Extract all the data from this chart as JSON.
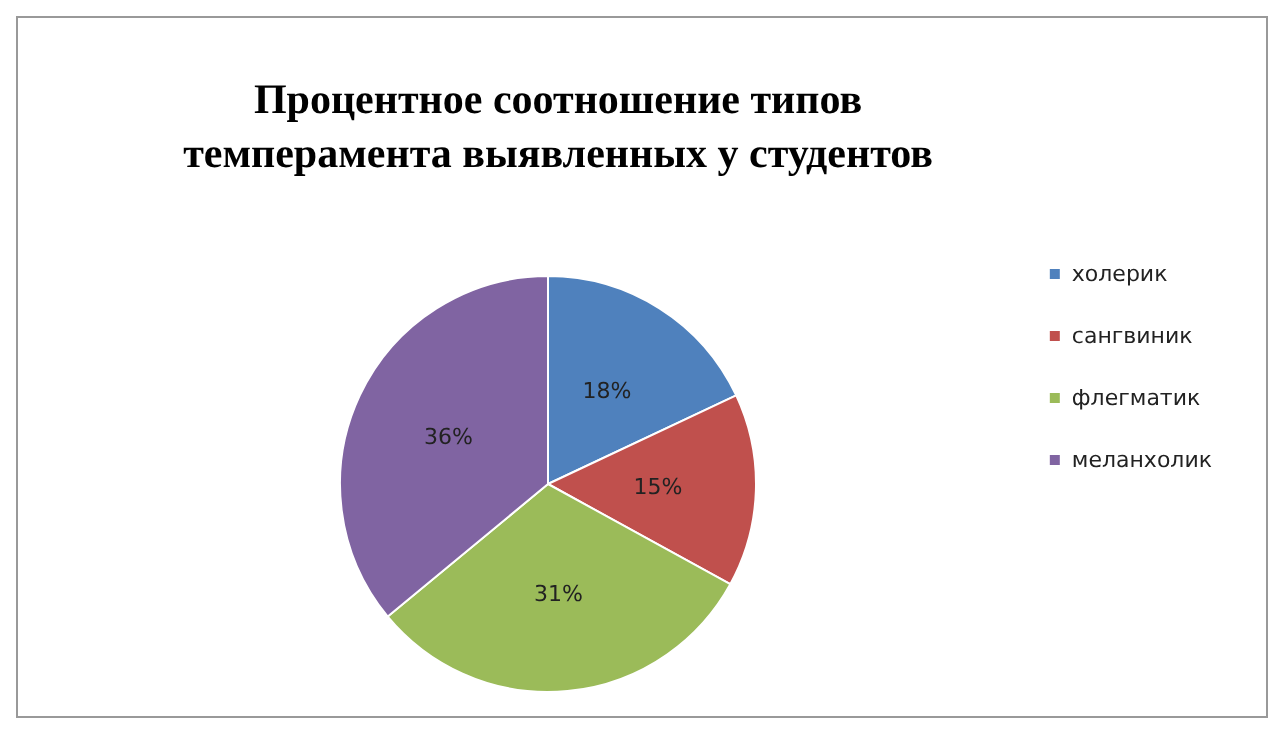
{
  "chart_data": {
    "type": "pie",
    "title": "Процентное соотношение типов\nтемперамента выявленных у студентов",
    "categories": [
      "холерик",
      "сангвиник",
      "флегматик",
      "меланхолик"
    ],
    "values": [
      18,
      15,
      31,
      36
    ],
    "colors": [
      "#4f81bd",
      "#c0504d",
      "#9bbb59",
      "#8064a2"
    ],
    "value_labels": [
      "18%",
      "15%",
      "31%",
      "36%"
    ],
    "legend": "right"
  }
}
